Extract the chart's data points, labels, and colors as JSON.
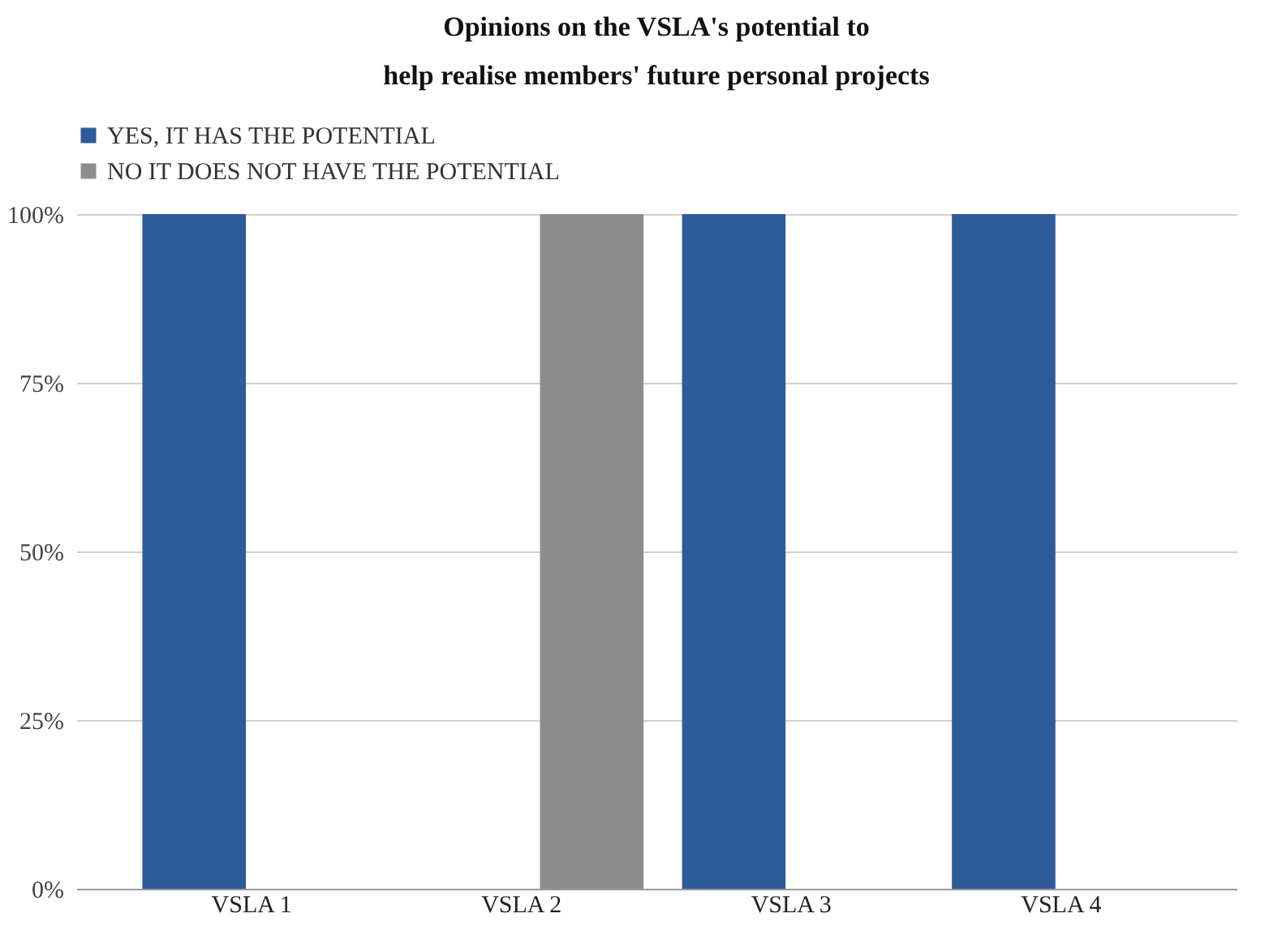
{
  "chart_data": {
    "type": "bar",
    "title": "Opinions on the VSLA's potential to\nhelp realise members' future personal projects",
    "categories": [
      "VSLA 1",
      "VSLA 2",
      "VSLA 3",
      "VSLA 4"
    ],
    "series": [
      {
        "name": "YES, IT HAS THE POTENTIAL",
        "color": "#2e5b9a",
        "values": [
          100,
          0,
          100,
          100
        ]
      },
      {
        "name": "NO IT DOES NOT HAVE THE POTENTIAL",
        "color": "#8c8c8c",
        "values": [
          0,
          100,
          0,
          0
        ]
      }
    ],
    "ylim": [
      0,
      100
    ],
    "yticks": [
      {
        "value": 0,
        "label": "0%"
      },
      {
        "value": 25,
        "label": "25%"
      },
      {
        "value": 50,
        "label": "50%"
      },
      {
        "value": 75,
        "label": "75%"
      },
      {
        "value": 100,
        "label": "100%"
      }
    ],
    "grid": "y",
    "legend": "top"
  }
}
